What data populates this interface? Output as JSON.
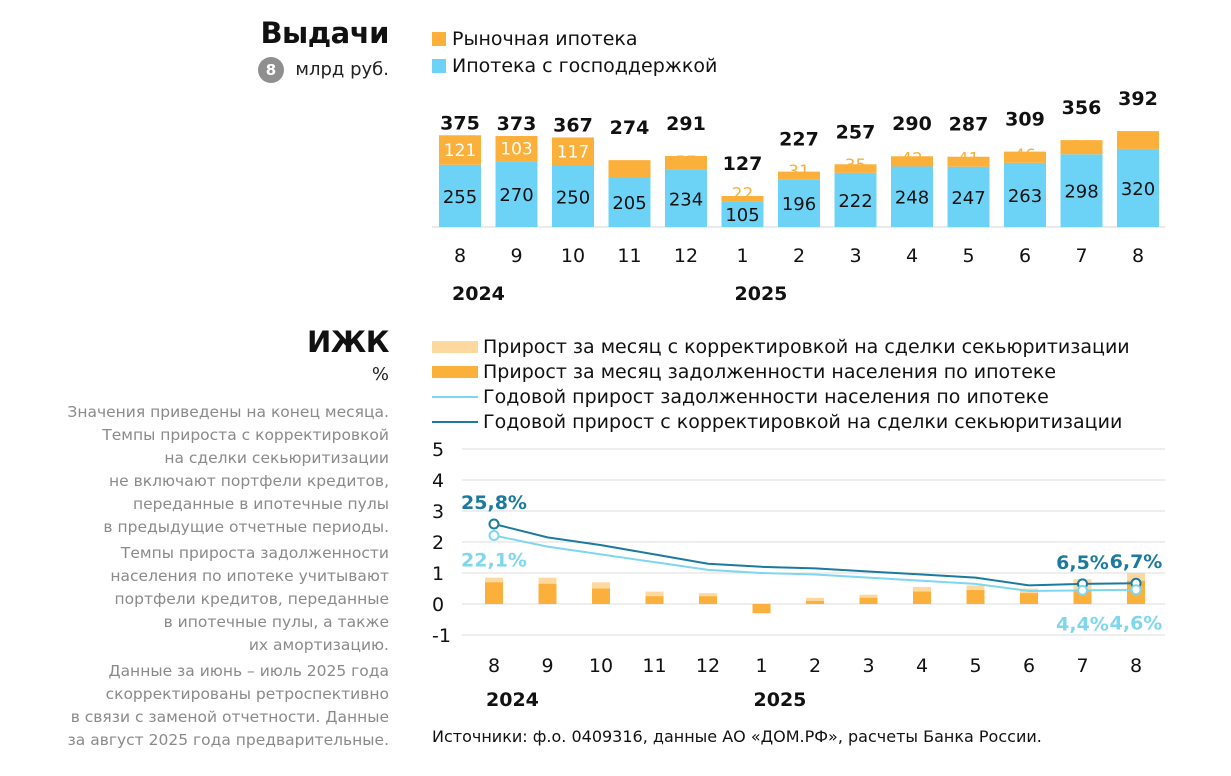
{
  "top": {
    "title": "Выдачи",
    "unit_badge": "8",
    "unit": "млрд руб.",
    "legend": [
      {
        "label": "Рыночная ипотека",
        "color": "#fbb03b"
      },
      {
        "label": "Ипотека с господдержкой",
        "color": "#6dd3f6"
      }
    ]
  },
  "bottom": {
    "title": "ИЖК",
    "unit": "%",
    "legend": [
      {
        "label": "Прирост за месяц с корректировкой на сделки секьюритизации",
        "color": "#fdd9a0"
      },
      {
        "label": "Прирост за месяц задолженности населения по ипотеке",
        "color": "#fbb03b"
      },
      {
        "label": "Годовой прирост задолженности населения по ипотеке",
        "color": "#7fd6ef"
      },
      {
        "label": "Годовой прирост с корректировкой на сделки секьюритизации",
        "color": "#1b7a9e"
      }
    ],
    "notes": [
      [
        "Значения приведены на конец месяца.",
        "Темпы прироста с корректировкой",
        "на сделки секьюритизации",
        "не включают портфели кредитов,",
        "переданные в ипотечные пулы",
        "в предыдущие отчетные периоды."
      ],
      [
        "Темпы прироста задолженности",
        "населения по ипотеке учитывают",
        "портфели кредитов, переданные",
        "в ипотечные пулы, а также",
        "их амортизацию."
      ],
      [
        "Данные за июнь – июль 2025 года",
        "скорректированы ретроспективно",
        "в связи с заменой отчетности. Данные",
        "за август 2025 года предварительные."
      ]
    ]
  },
  "source": "Источники: ф.о. 0409316, данные АО «ДОМ.РФ», расчеты Банка России.",
  "chart_data": [
    {
      "type": "bar",
      "stacked": true,
      "categories": [
        "8",
        "9",
        "10",
        "11",
        "12",
        "1",
        "2",
        "3",
        "4",
        "5",
        "6",
        "7",
        "8"
      ],
      "year_labels": [
        {
          "label": "2024",
          "at_index": 0
        },
        {
          "label": "2025",
          "at_index": 5
        }
      ],
      "series": [
        {
          "name": "Ипотека с господдержкой",
          "color": "#6dd3f6",
          "values": [
            255,
            270,
            250,
            205,
            234,
            105,
            196,
            222,
            248,
            247,
            263,
            298,
            320
          ]
        },
        {
          "name": "Рыночная ипотека",
          "color": "#fbb03b",
          "values": [
            121,
            103,
            117,
            69,
            57,
            22,
            31,
            35,
            42,
            41,
            46,
            58,
            73
          ]
        }
      ],
      "totals": [
        375,
        373,
        367,
        274,
        291,
        127,
        227,
        257,
        290,
        287,
        309,
        356,
        392
      ],
      "ylim": [
        0,
        400
      ]
    },
    {
      "type": "bar+line",
      "categories": [
        "8",
        "9",
        "10",
        "11",
        "12",
        "1",
        "2",
        "3",
        "4",
        "5",
        "6",
        "7",
        "8"
      ],
      "year_labels": [
        {
          "label": "2024",
          "at_index": 0
        },
        {
          "label": "2025",
          "at_index": 5
        }
      ],
      "yticks": [
        "5",
        "4",
        "3",
        "2",
        "1",
        "0",
        "-1"
      ],
      "ylim": [
        -1,
        5
      ],
      "grid": true,
      "bars": [
        {
          "name": "Прирост за месяц с корректировкой на сделки секьюритизации",
          "color": "#fdd9a0",
          "values": [
            0.85,
            0.85,
            0.7,
            0.4,
            0.35,
            -0.15,
            0.2,
            0.3,
            0.55,
            0.6,
            0.5,
            0.8,
            1.0
          ]
        },
        {
          "name": "Прирост за месяц задолженности населения по ипотеке",
          "color": "#fbb03b",
          "values": [
            0.7,
            0.65,
            0.5,
            0.25,
            0.25,
            -0.3,
            0.1,
            0.2,
            0.4,
            0.45,
            0.35,
            0.45,
            0.75
          ]
        }
      ],
      "lines": [
        {
          "name": "Годовой прирост задолженности населения по ипотеке",
          "color": "#7fd6ef",
          "values": [
            2.21,
            1.85,
            1.6,
            1.35,
            1.1,
            1.0,
            0.95,
            0.85,
            0.75,
            0.65,
            0.42,
            0.44,
            0.46
          ]
        },
        {
          "name": "Годовой прирост с корректировкой на сделки секьюритизации",
          "color": "#1b7a9e",
          "values": [
            2.58,
            2.15,
            1.9,
            1.6,
            1.3,
            1.2,
            1.15,
            1.05,
            0.95,
            0.85,
            0.6,
            0.65,
            0.67
          ]
        }
      ],
      "annotations": [
        {
          "text": "25,8%",
          "series": 1,
          "index": 0,
          "position": "above",
          "color": "#1b7a9e"
        },
        {
          "text": "22,1%",
          "series": 0,
          "index": 0,
          "position": "below",
          "color": "#7fd6ef"
        },
        {
          "text": "6,5%",
          "series": 1,
          "index": 11,
          "position": "above",
          "color": "#1b7a9e"
        },
        {
          "text": "6,7%",
          "series": 1,
          "index": 12,
          "position": "above",
          "color": "#1b7a9e"
        },
        {
          "text": "4,4%",
          "series": 0,
          "index": 11,
          "position": "below",
          "color": "#7fd6ef"
        },
        {
          "text": "4,6%",
          "series": 0,
          "index": 12,
          "position": "below",
          "color": "#7fd6ef"
        }
      ]
    }
  ]
}
